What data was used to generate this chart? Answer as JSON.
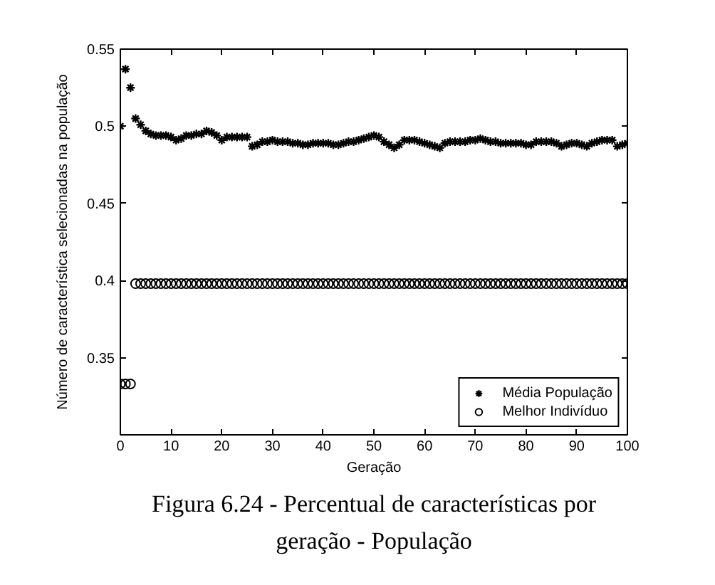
{
  "chart_data": {
    "type": "scatter",
    "xlabel": "Geração",
    "ylabel": "Número de característica selecionadas na população",
    "annotations": [
      "Figura 6.24 - Percentual de características por geração - População"
    ],
    "x": [
      0,
      1,
      2,
      3,
      4,
      5,
      6,
      7,
      8,
      9,
      10,
      11,
      12,
      13,
      14,
      15,
      16,
      17,
      18,
      19,
      20,
      21,
      22,
      23,
      24,
      25,
      26,
      27,
      28,
      29,
      30,
      31,
      32,
      33,
      34,
      35,
      36,
      37,
      38,
      39,
      40,
      41,
      42,
      43,
      44,
      45,
      46,
      47,
      48,
      49,
      50,
      51,
      52,
      53,
      54,
      55,
      56,
      57,
      58,
      59,
      60,
      61,
      62,
      63,
      64,
      65,
      66,
      67,
      68,
      69,
      70,
      71,
      72,
      73,
      74,
      75,
      76,
      77,
      78,
      79,
      80,
      81,
      82,
      83,
      84,
      85,
      86,
      87,
      88,
      89,
      90,
      91,
      92,
      93,
      94,
      95,
      96,
      97,
      98,
      99,
      100
    ],
    "series": [
      {
        "name": "Média População",
        "color": "#000000",
        "marker": "cross",
        "values": [
          0.5,
          0.537,
          0.525,
          0.505,
          0.501,
          0.497,
          0.495,
          0.494,
          0.494,
          0.494,
          0.493,
          0.491,
          0.492,
          0.494,
          0.494,
          0.495,
          0.495,
          0.497,
          0.496,
          0.494,
          0.491,
          0.493,
          0.493,
          0.493,
          0.493,
          0.493,
          0.487,
          0.488,
          0.49,
          0.49,
          0.491,
          0.49,
          0.49,
          0.49,
          0.489,
          0.489,
          0.488,
          0.488,
          0.489,
          0.489,
          0.489,
          0.489,
          0.488,
          0.488,
          0.489,
          0.49,
          0.49,
          0.491,
          0.492,
          0.493,
          0.494,
          0.493,
          0.49,
          0.488,
          0.486,
          0.488,
          0.491,
          0.491,
          0.491,
          0.49,
          0.489,
          0.488,
          0.487,
          0.486,
          0.489,
          0.49,
          0.49,
          0.49,
          0.49,
          0.491,
          0.491,
          0.492,
          0.491,
          0.49,
          0.49,
          0.489,
          0.489,
          0.489,
          0.489,
          0.489,
          0.488,
          0.488,
          0.49,
          0.49,
          0.49,
          0.49,
          0.489,
          0.487,
          0.488,
          0.489,
          0.489,
          0.488,
          0.487,
          0.489,
          0.49,
          0.491,
          0.491,
          0.491,
          0.487,
          0.488,
          0.489
        ]
      },
      {
        "name": "Melhor Indivíduo",
        "color": "#000000",
        "marker": "circle",
        "values": [
          0.333,
          0.333,
          0.333,
          0.398,
          0.398,
          0.398,
          0.398,
          0.398,
          0.398,
          0.398,
          0.398,
          0.398,
          0.398,
          0.398,
          0.398,
          0.398,
          0.398,
          0.398,
          0.398,
          0.398,
          0.398,
          0.398,
          0.398,
          0.398,
          0.398,
          0.398,
          0.398,
          0.398,
          0.398,
          0.398,
          0.398,
          0.398,
          0.398,
          0.398,
          0.398,
          0.398,
          0.398,
          0.398,
          0.398,
          0.398,
          0.398,
          0.398,
          0.398,
          0.398,
          0.398,
          0.398,
          0.398,
          0.398,
          0.398,
          0.398,
          0.398,
          0.398,
          0.398,
          0.398,
          0.398,
          0.398,
          0.398,
          0.398,
          0.398,
          0.398,
          0.398,
          0.398,
          0.398,
          0.398,
          0.398,
          0.398,
          0.398,
          0.398,
          0.398,
          0.398,
          0.398,
          0.398,
          0.398,
          0.398,
          0.398,
          0.398,
          0.398,
          0.398,
          0.398,
          0.398,
          0.398,
          0.398,
          0.398,
          0.398,
          0.398,
          0.398,
          0.398,
          0.398,
          0.398,
          0.398,
          0.398,
          0.398,
          0.398,
          0.398,
          0.398,
          0.398,
          0.398,
          0.398,
          0.398,
          0.398,
          0.398
        ]
      }
    ],
    "xlim": [
      0,
      100
    ],
    "ylim": [
      0.3,
      0.55
    ],
    "xticks": [
      0,
      10,
      20,
      30,
      40,
      50,
      60,
      70,
      80,
      90,
      100
    ],
    "yticks": [
      0.35,
      0.4,
      0.45,
      0.5,
      0.55
    ],
    "grid": false,
    "legend": "bottom right"
  }
}
